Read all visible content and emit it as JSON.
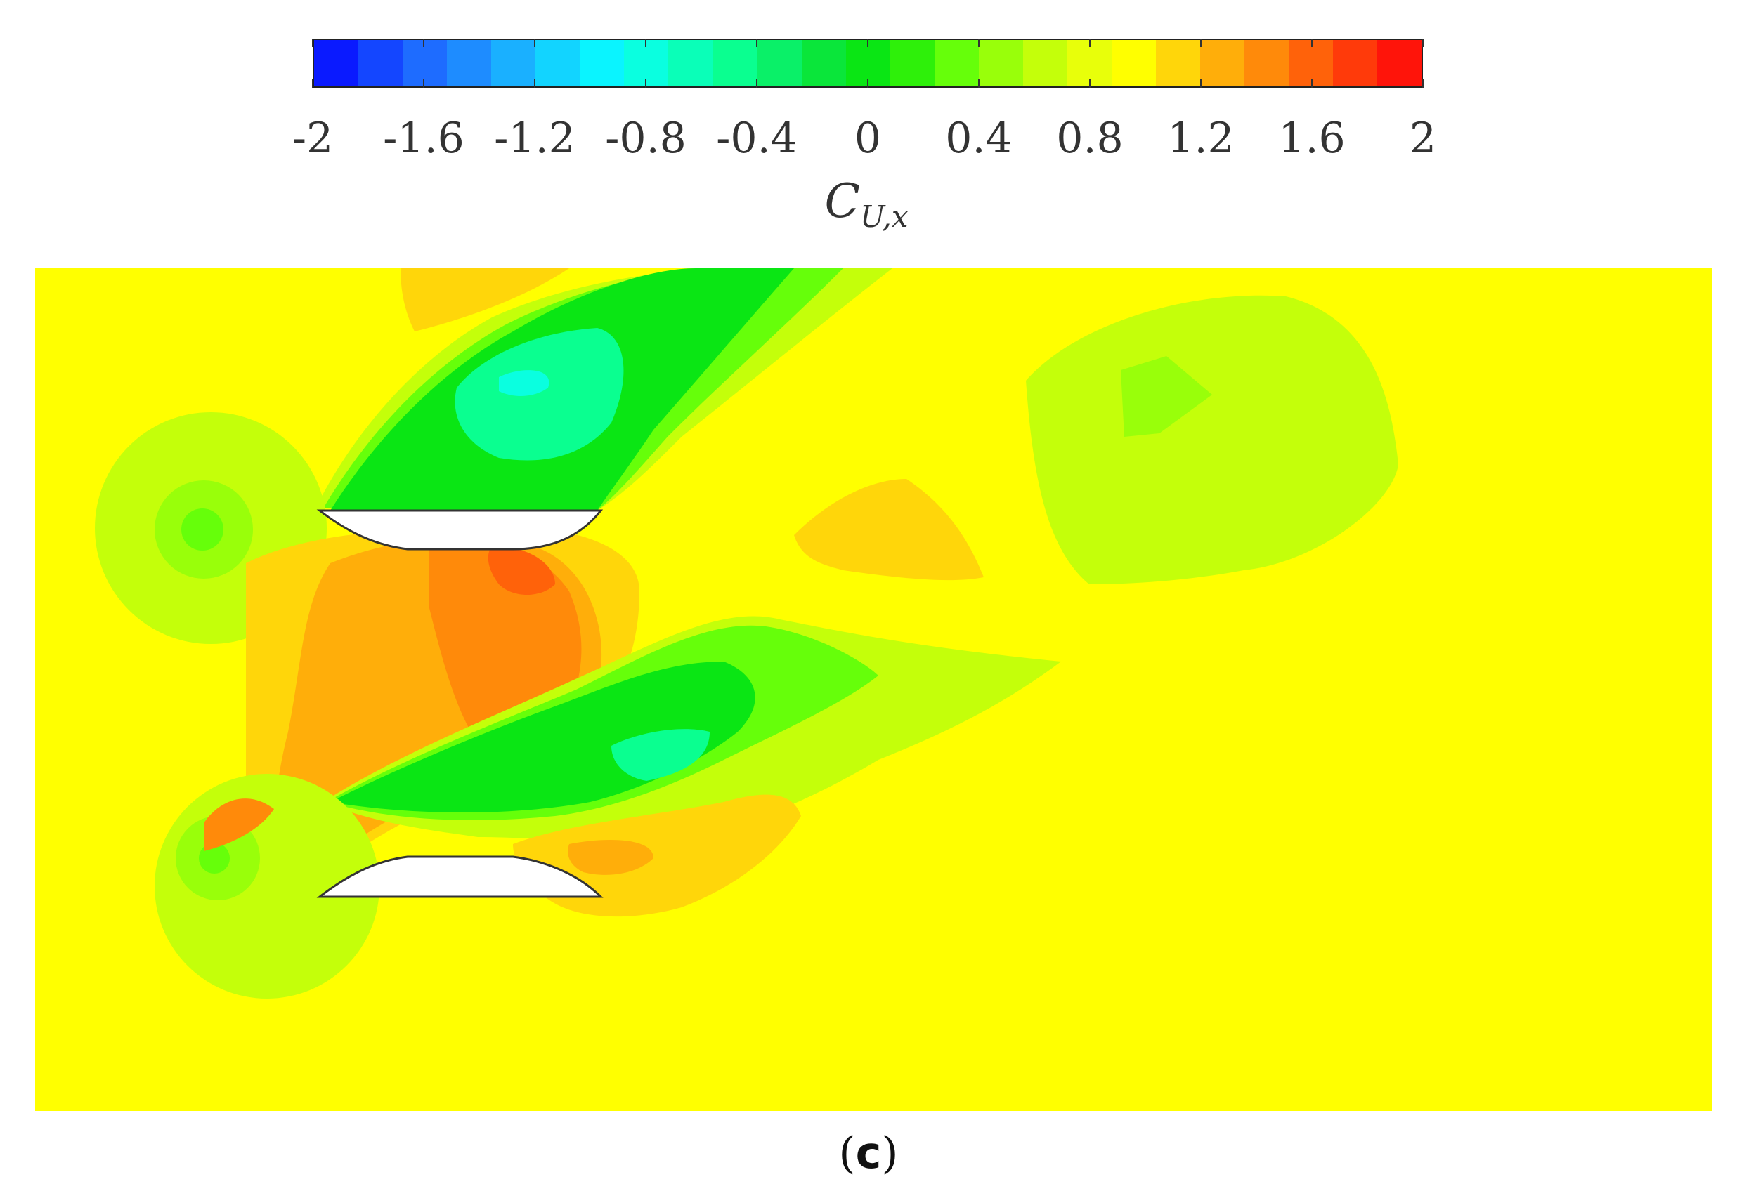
{
  "chart_data": {
    "type": "heatmap",
    "colorbar": {
      "min": -2,
      "max": 2,
      "levels": 25,
      "tick_labels": [
        "-2",
        "-1.6",
        "-1.2",
        "-0.8",
        "-0.4",
        "0",
        "0.4",
        "0.8",
        "1.2",
        "1.6",
        "2"
      ],
      "tick_values": [
        -2,
        -1.6,
        -1.2,
        -0.8,
        -0.4,
        0,
        0.4,
        0.8,
        1.2,
        1.6,
        2
      ],
      "title_main": "C",
      "title_sub": "U,x",
      "colors": [
        "#0a1aff",
        "#1446ff",
        "#1e6cff",
        "#1e8cff",
        "#1ab0ff",
        "#12d4ff",
        "#0af4ff",
        "#0affe0",
        "#0affb8",
        "#0aff90",
        "#0af068",
        "#0ae63a",
        "#0ae614",
        "#2ef00a",
        "#66ff0a",
        "#99ff0a",
        "#c4ff0a",
        "#e8ff0a",
        "#ffff00",
        "#ffd60a",
        "#ffae0a",
        "#ff8a0a",
        "#ff620a",
        "#ff3a0a",
        "#ff140a"
      ]
    },
    "bodies": [
      "upper-airfoil",
      "lower-airfoil"
    ],
    "background_level": 1.0
  },
  "panel_label": "c"
}
